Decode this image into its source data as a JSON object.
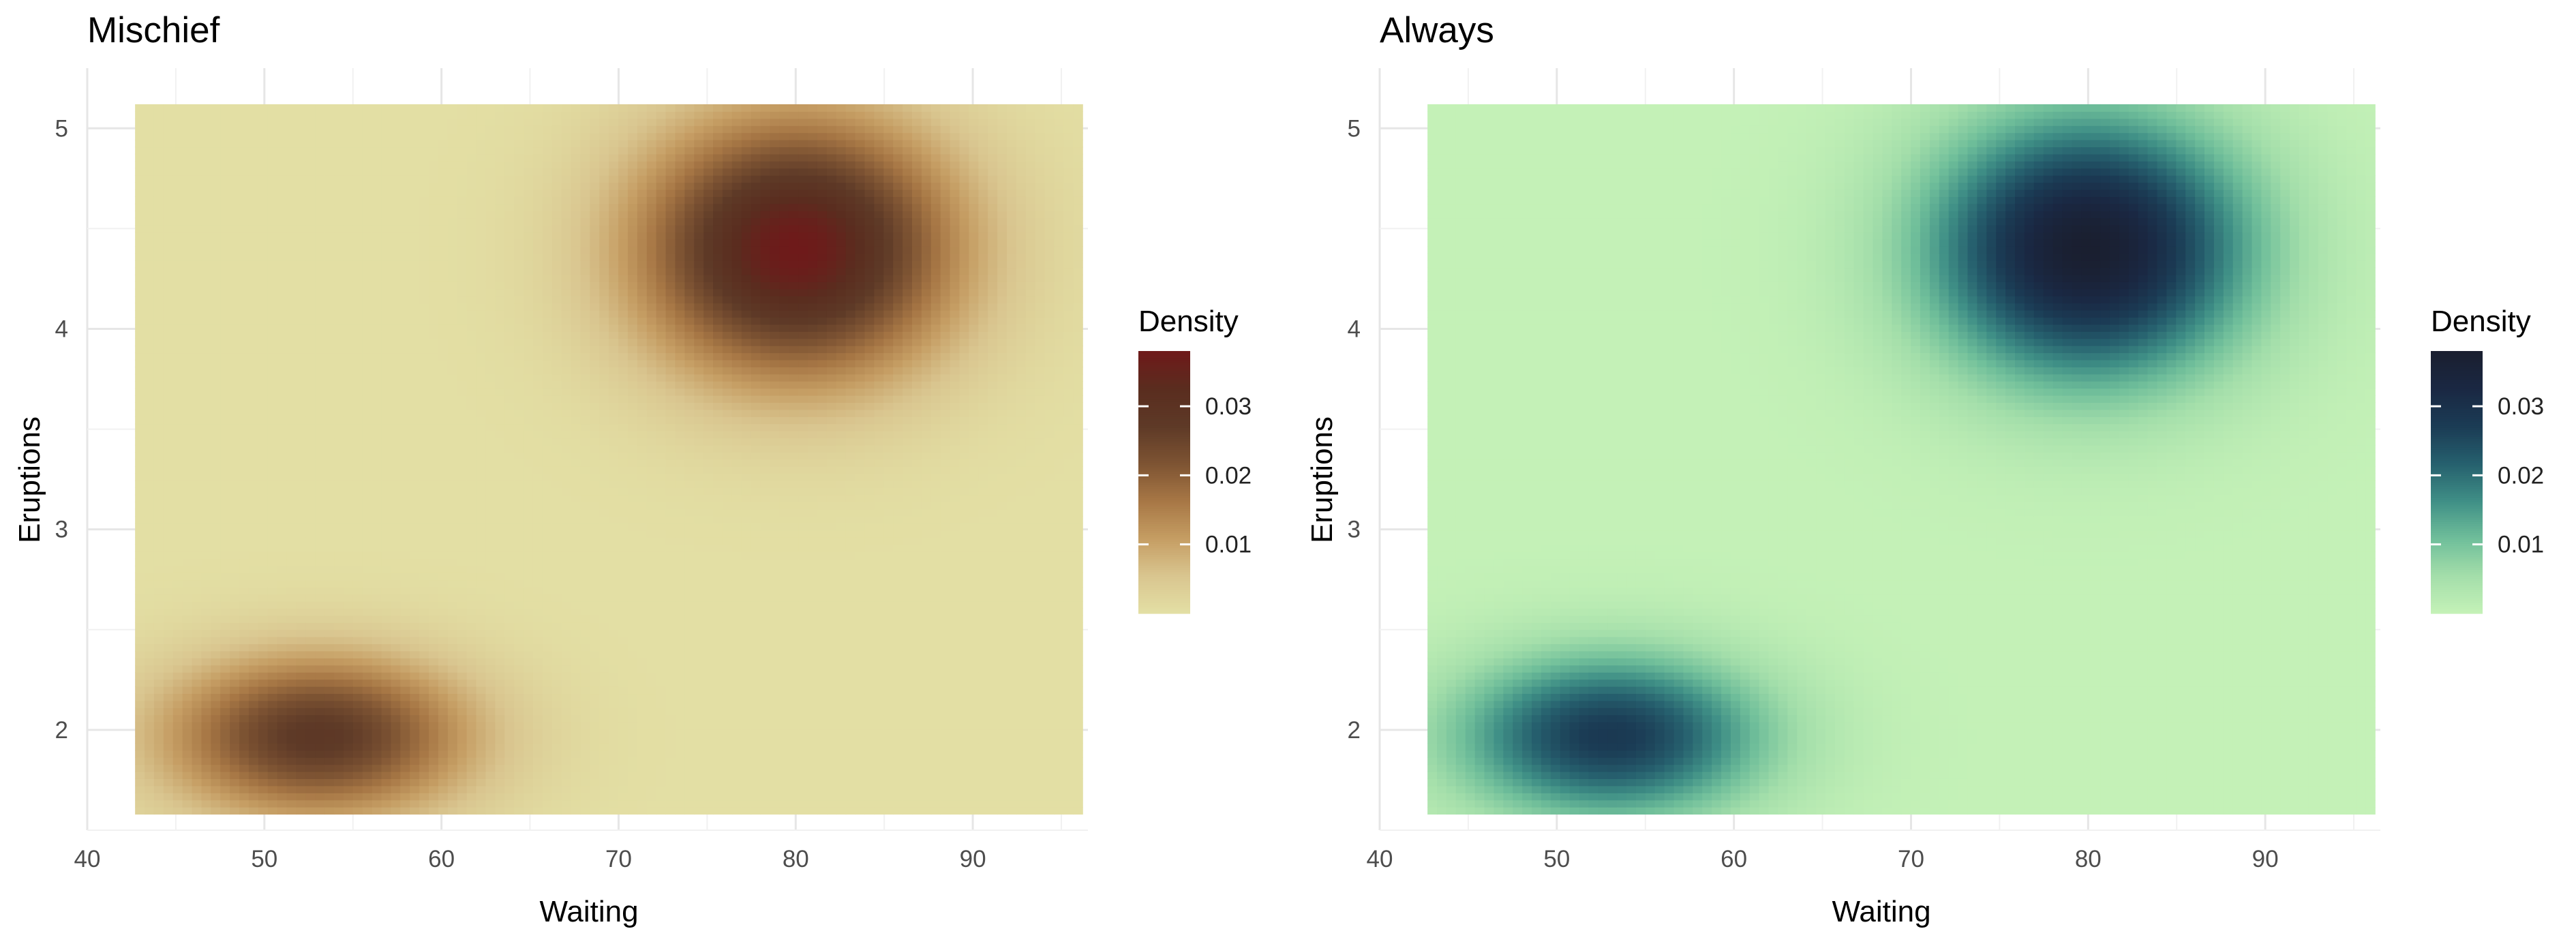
{
  "chart_data": [
    {
      "type": "heatmap",
      "title": "Mischief",
      "xlabel": "Waiting",
      "ylabel": "Eruptions",
      "xlim": [
        40,
        96.5
      ],
      "ylim": [
        1.5,
        5.3
      ],
      "x_range": [
        42.7,
        96.2
      ],
      "y_range": [
        1.58,
        5.12
      ],
      "x_ticks": [
        "40",
        "50",
        "60",
        "70",
        "80",
        "90"
      ],
      "y_ticks": [
        "2",
        "3",
        "4",
        "5"
      ],
      "grid": true,
      "legend": {
        "title": "Density",
        "position": "right",
        "ticks": [
          "0.01",
          "0.02",
          "0.03"
        ],
        "min": 0,
        "max": 0.038
      },
      "colorscale": [
        "#e3dfa4",
        "#d9c58f",
        "#c59d63",
        "#a77745",
        "#7e5433",
        "#5e3a27",
        "#5a2d1f",
        "#6e1a1a"
      ],
      "density_components": [
        {
          "mean_x": 80,
          "mean_y": 4.4,
          "sd_x": 6.2,
          "sd_y": 0.45,
          "peak": 0.038
        },
        {
          "mean_x": 53,
          "mean_y": 1.97,
          "sd_x": 6.0,
          "sd_y": 0.28,
          "peak": 0.028
        }
      ]
    },
    {
      "type": "heatmap",
      "title": "Always",
      "xlabel": "Waiting",
      "ylabel": "Eruptions",
      "xlim": [
        40,
        96.5
      ],
      "ylim": [
        1.5,
        5.3
      ],
      "x_range": [
        42.7,
        96.2
      ],
      "y_range": [
        1.58,
        5.12
      ],
      "x_ticks": [
        "40",
        "50",
        "60",
        "70",
        "80",
        "90"
      ],
      "y_ticks": [
        "2",
        "3",
        "4",
        "5"
      ],
      "grid": true,
      "legend": {
        "title": "Density",
        "position": "right",
        "ticks": [
          "0.01",
          "0.02",
          "0.03"
        ],
        "min": 0,
        "max": 0.038
      },
      "colorscale": [
        "#c4f1b7",
        "#a3deaa",
        "#6fbe9a",
        "#3f8f86",
        "#26606e",
        "#1b3c55",
        "#1a2843",
        "#1a1f30"
      ],
      "density_components": [
        {
          "mean_x": 80,
          "mean_y": 4.4,
          "sd_x": 6.2,
          "sd_y": 0.45,
          "peak": 0.038
        },
        {
          "mean_x": 53,
          "mean_y": 1.97,
          "sd_x": 6.0,
          "sd_y": 0.28,
          "peak": 0.028
        }
      ]
    }
  ]
}
